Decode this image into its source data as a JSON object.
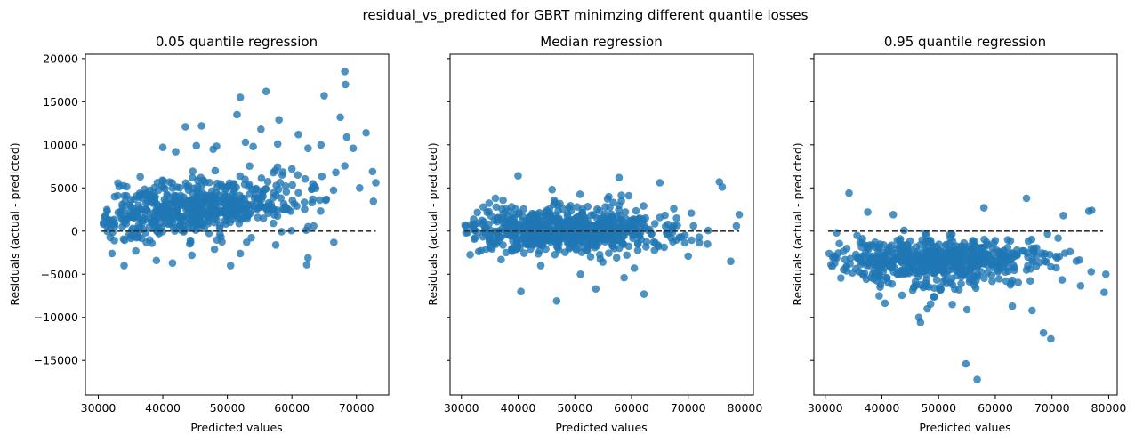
{
  "suptitle": "residual_vs_predicted for GBRT minimzing different quantile losses",
  "chart_data": [
    {
      "type": "scatter",
      "title": "0.05 quantile regression",
      "xlabel": "Predicted values",
      "ylabel": "Residuals (actual - predicted)",
      "xlim": [
        28000,
        75000
      ],
      "ylim": [
        -19000,
        20500
      ],
      "xticks": [
        30000,
        40000,
        50000,
        60000,
        70000
      ],
      "yticks": [
        -15000,
        -10000,
        -5000,
        0,
        5000,
        10000,
        15000,
        20000
      ],
      "show_yticklabels": true,
      "reference_line": {
        "y": 0,
        "from_x": 30500,
        "to_x": 73000,
        "style": "dashed",
        "color": "#333333"
      },
      "marker_color": "#1f77b4",
      "cloud": {
        "n": 600,
        "x_range": [
          30500,
          73000
        ],
        "x_center": 45000,
        "x_spread": 8000,
        "base_slope": 0.07,
        "base_at": 30000,
        "residual_spread": 2200,
        "skew": "positive",
        "seed": 11
      },
      "points": [
        [
          68200,
          18500
        ],
        [
          68300,
          17000
        ],
        [
          56000,
          16200
        ],
        [
          52000,
          15500
        ],
        [
          65000,
          15700
        ],
        [
          51500,
          13500
        ],
        [
          67500,
          13200
        ],
        [
          58000,
          12900
        ],
        [
          43500,
          12100
        ],
        [
          46000,
          12200
        ],
        [
          71500,
          11400
        ],
        [
          55200,
          11800
        ],
        [
          61000,
          11200
        ],
        [
          68500,
          10900
        ],
        [
          52800,
          10300
        ],
        [
          45200,
          9900
        ],
        [
          57800,
          10100
        ],
        [
          64500,
          10000
        ],
        [
          62500,
          9600
        ],
        [
          40000,
          9700
        ],
        [
          47800,
          9500
        ],
        [
          72500,
          6900
        ],
        [
          73000,
          5600
        ],
        [
          70500,
          5000
        ],
        [
          69500,
          9600
        ],
        [
          54000,
          9800
        ],
        [
          42000,
          9200
        ],
        [
          33000,
          4100
        ],
        [
          34000,
          -4000
        ],
        [
          41500,
          -3700
        ],
        [
          39000,
          -3400
        ],
        [
          50500,
          -4000
        ],
        [
          62500,
          -3100
        ],
        [
          62300,
          -3900
        ],
        [
          52000,
          -2600
        ],
        [
          44500,
          -2800
        ],
        [
          48000,
          -2100
        ],
        [
          57500,
          -1600
        ],
        [
          66500,
          -1300
        ],
        [
          30800,
          800
        ],
        [
          30800,
          1000
        ],
        [
          36500,
          6300
        ],
        [
          38000,
          4700
        ],
        [
          58500,
          6500
        ],
        [
          60000,
          7200
        ],
        [
          66800,
          6800
        ],
        [
          63500,
          5200
        ]
      ]
    },
    {
      "type": "scatter",
      "title": "Median regression",
      "xlabel": "Predicted values",
      "ylabel": "Residuals (actual - predicted)",
      "xlim": [
        28000,
        81500
      ],
      "ylim": [
        -19000,
        20500
      ],
      "xticks": [
        30000,
        40000,
        50000,
        60000,
        70000,
        80000
      ],
      "yticks": [
        -15000,
        -10000,
        -5000,
        0,
        5000,
        10000,
        15000,
        20000
      ],
      "show_yticklabels": false,
      "reference_line": {
        "y": 0,
        "from_x": 30500,
        "to_x": 79000,
        "style": "dashed",
        "color": "#333333"
      },
      "marker_color": "#1f77b4",
      "cloud": {
        "n": 700,
        "x_range": [
          30500,
          79000
        ],
        "x_center": 47500,
        "x_spread": 9500,
        "base_slope": 0,
        "base_at": 30000,
        "residual_spread": 1250,
        "skew": "none",
        "seed": 23
      },
      "points": [
        [
          40000,
          6400
        ],
        [
          57800,
          6200
        ],
        [
          65000,
          5600
        ],
        [
          75500,
          5700
        ],
        [
          76000,
          5100
        ],
        [
          46000,
          4800
        ],
        [
          36000,
          3800
        ],
        [
          56000,
          4000
        ],
        [
          40500,
          -7000
        ],
        [
          46800,
          -8100
        ],
        [
          62200,
          -7300
        ],
        [
          53700,
          -6700
        ],
        [
          51000,
          -5000
        ],
        [
          58700,
          -5400
        ],
        [
          77500,
          -3500
        ],
        [
          37000,
          -3300
        ],
        [
          44000,
          -4000
        ],
        [
          60500,
          -4300
        ],
        [
          70000,
          -2900
        ],
        [
          79000,
          1900
        ],
        [
          78500,
          600
        ],
        [
          30800,
          -200
        ]
      ]
    },
    {
      "type": "scatter",
      "title": "0.95 quantile regression",
      "xlabel": "Predicted values",
      "ylabel": "Residuals (actual - predicted)",
      "xlim": [
        28000,
        81500
      ],
      "ylim": [
        -19000,
        20500
      ],
      "xticks": [
        30000,
        40000,
        50000,
        60000,
        70000,
        80000
      ],
      "yticks": [
        -15000,
        -10000,
        -5000,
        0,
        5000,
        10000,
        15000,
        20000
      ],
      "show_yticklabels": false,
      "reference_line": {
        "y": 0,
        "from_x": 30500,
        "to_x": 79000,
        "style": "dashed",
        "color": "#333333"
      },
      "marker_color": "#1f77b4",
      "cloud": {
        "n": 650,
        "x_range": [
          30500,
          79000
        ],
        "x_center": 50000,
        "x_spread": 9500,
        "base_slope": 0,
        "base_at": 30000,
        "residual_spread": 1800,
        "offset": -2400,
        "skew": "negative",
        "seed": 37
      },
      "points": [
        [
          56800,
          -17200
        ],
        [
          54800,
          -15400
        ],
        [
          69800,
          -12500
        ],
        [
          68500,
          -11800
        ],
        [
          46800,
          -10600
        ],
        [
          46500,
          -10000
        ],
        [
          79200,
          -7100
        ],
        [
          79500,
          -5000
        ],
        [
          66500,
          -9200
        ],
        [
          55000,
          -9100
        ],
        [
          63000,
          -8700
        ],
        [
          48000,
          -9000
        ],
        [
          34200,
          4400
        ],
        [
          65500,
          3800
        ],
        [
          58000,
          2700
        ],
        [
          76500,
          2300
        ],
        [
          77000,
          2400
        ],
        [
          37500,
          2200
        ],
        [
          42000,
          1900
        ],
        [
          72000,
          1800
        ],
        [
          32000,
          -200
        ],
        [
          33500,
          -3300
        ],
        [
          36500,
          -4900
        ]
      ]
    }
  ]
}
